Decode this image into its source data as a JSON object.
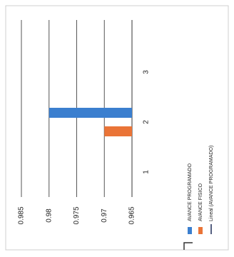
{
  "chart_data": {
    "type": "bar",
    "orientation": "horizontal",
    "categories": [
      "1",
      "2",
      "3"
    ],
    "series": [
      {
        "name": "AVANCE PROGRAMADO",
        "color": "#3b7fcf",
        "values": [
          null,
          0.98,
          null
        ]
      },
      {
        "name": "AVANCE FISICO",
        "color": "#ea7437",
        "values": [
          null,
          0.97,
          null
        ]
      }
    ],
    "trendline": {
      "name": "Lineal (AVANCE PROGRAMADO)",
      "color": "#1d2b57"
    },
    "ylim": [
      0.965,
      0.985
    ],
    "yticks": [
      0.965,
      0.97,
      0.975,
      0.98,
      0.985
    ],
    "grid": true
  }
}
